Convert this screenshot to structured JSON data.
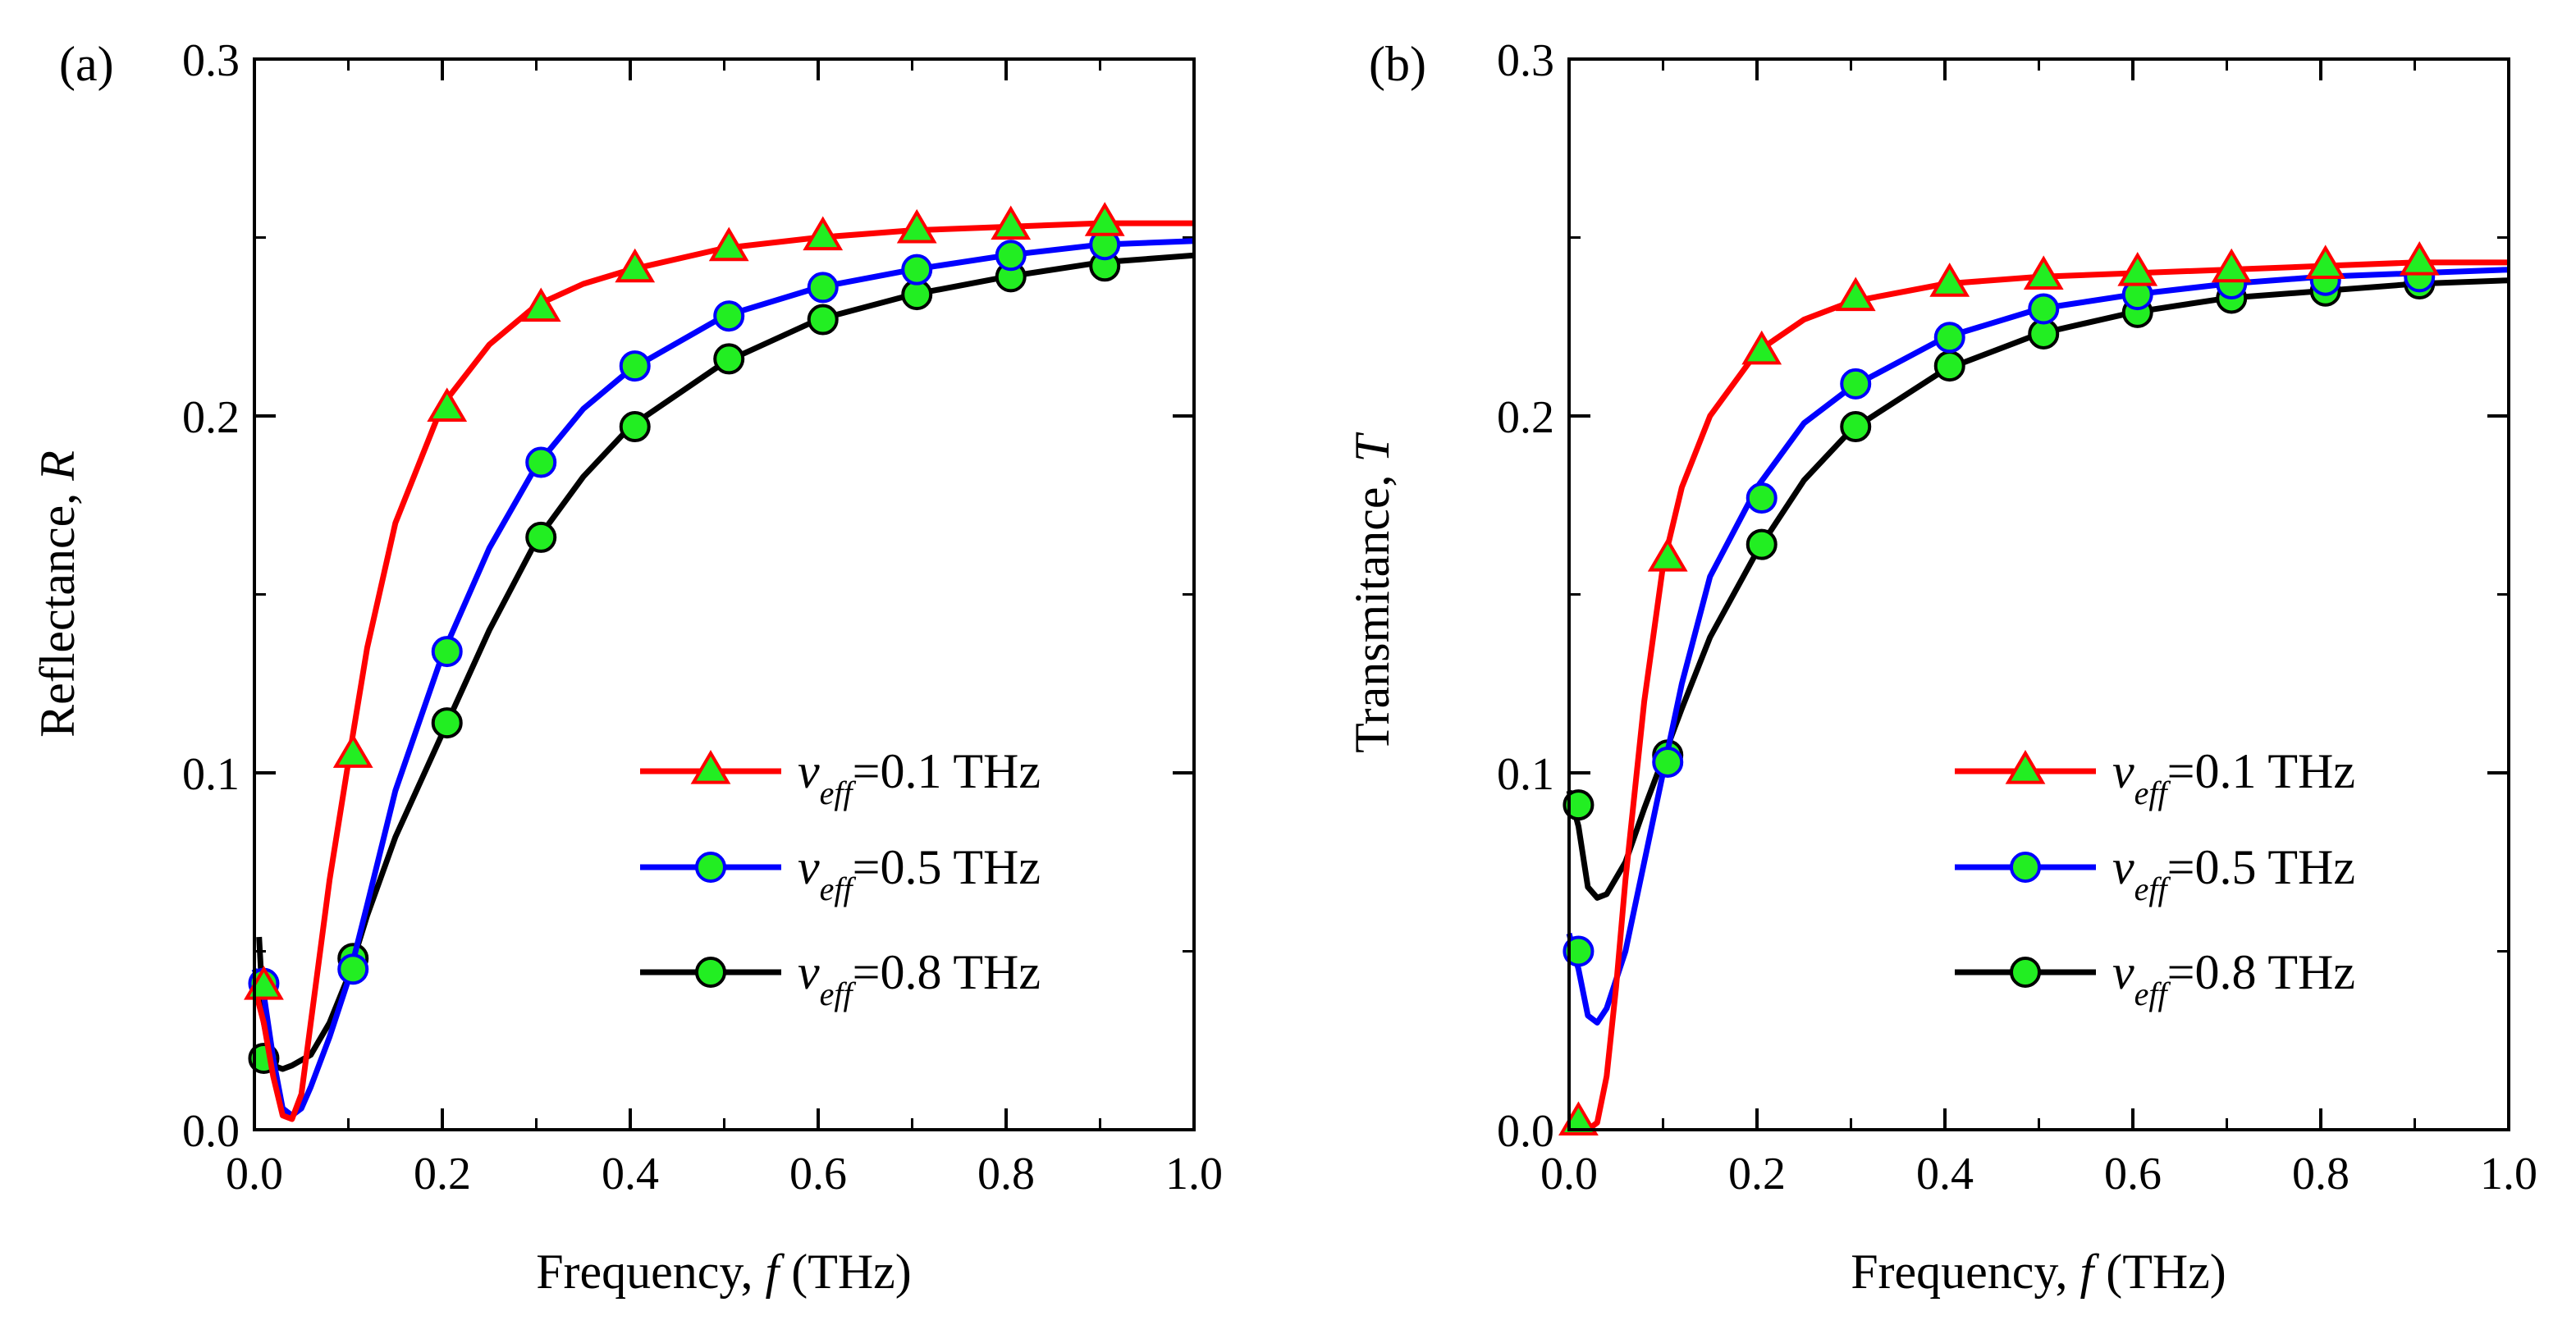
{
  "chart_data": [
    {
      "panel_label": "(a)",
      "type": "line",
      "xlabel": "Frequency, f (THz)",
      "xlabel_parts": {
        "prefix": "Frequency, ",
        "symbol": "f",
        "suffix": " (THz)"
      },
      "ylabel": "Reflectance, R",
      "ylabel_parts": {
        "prefix": "Reflectance, ",
        "symbol": "R"
      },
      "xlim": [
        0.0,
        1.0
      ],
      "ylim": [
        0.0,
        0.3
      ],
      "xticks": [
        "0.0",
        "0.2",
        "0.4",
        "0.6",
        "0.8",
        "1.0"
      ],
      "yticks": [
        "0.0",
        "0.1",
        "0.2",
        "0.3"
      ],
      "legend_position": "lower-right",
      "series": [
        {
          "name": "v_eff=0.1 THz",
          "legend": {
            "symbol": "v",
            "sub": "eff",
            "rest": "=0.1 THz"
          },
          "color": "#ff0000",
          "marker": "triangle",
          "line": [
            [
              0.0,
              0.04
            ],
            [
              0.01,
              0.03
            ],
            [
              0.02,
              0.015
            ],
            [
              0.03,
              0.004
            ],
            [
              0.04,
              0.003
            ],
            [
              0.05,
              0.01
            ],
            [
              0.06,
              0.03
            ],
            [
              0.08,
              0.07
            ],
            [
              0.1,
              0.103
            ],
            [
              0.12,
              0.135
            ],
            [
              0.15,
              0.17
            ],
            [
              0.2,
              0.203
            ],
            [
              0.25,
              0.22
            ],
            [
              0.3,
              0.231
            ],
            [
              0.35,
              0.237
            ],
            [
              0.4,
              0.241
            ],
            [
              0.5,
              0.247
            ],
            [
              0.6,
              0.25
            ],
            [
              0.7,
              0.252
            ],
            [
              0.8,
              0.253
            ],
            [
              0.9,
              0.254
            ],
            [
              1.0,
              0.254
            ]
          ],
          "markers": [
            [
              0.01,
              0.04
            ],
            [
              0.105,
              0.105
            ],
            [
              0.205,
              0.202
            ],
            [
              0.305,
              0.23
            ],
            [
              0.405,
              0.241
            ],
            [
              0.505,
              0.247
            ],
            [
              0.605,
              0.25
            ],
            [
              0.705,
              0.252
            ],
            [
              0.805,
              0.253
            ],
            [
              0.905,
              0.254
            ]
          ]
        },
        {
          "name": "v_eff=0.5 THz",
          "legend": {
            "symbol": "v",
            "sub": "eff",
            "rest": "=0.5 THz"
          },
          "color": "#0000ff",
          "marker": "circle",
          "line": [
            [
              0.0,
              0.045
            ],
            [
              0.01,
              0.038
            ],
            [
              0.02,
              0.02
            ],
            [
              0.03,
              0.006
            ],
            [
              0.04,
              0.004
            ],
            [
              0.05,
              0.006
            ],
            [
              0.06,
              0.012
            ],
            [
              0.08,
              0.026
            ],
            [
              0.1,
              0.042
            ],
            [
              0.12,
              0.063
            ],
            [
              0.15,
              0.095
            ],
            [
              0.2,
              0.133
            ],
            [
              0.25,
              0.163
            ],
            [
              0.3,
              0.186
            ],
            [
              0.35,
              0.202
            ],
            [
              0.4,
              0.213
            ],
            [
              0.5,
              0.228
            ],
            [
              0.6,
              0.236
            ],
            [
              0.7,
              0.241
            ],
            [
              0.8,
              0.245
            ],
            [
              0.9,
              0.248
            ],
            [
              1.0,
              0.249
            ]
          ],
          "markers": [
            [
              0.01,
              0.041
            ],
            [
              0.105,
              0.045
            ],
            [
              0.205,
              0.134
            ],
            [
              0.305,
              0.187
            ],
            [
              0.405,
              0.214
            ],
            [
              0.505,
              0.228
            ],
            [
              0.605,
              0.236
            ],
            [
              0.705,
              0.241
            ],
            [
              0.805,
              0.245
            ],
            [
              0.905,
              0.248
            ]
          ]
        },
        {
          "name": "v_eff=0.8 THz",
          "legend": {
            "symbol": "v",
            "sub": "eff",
            "rest": "=0.8 THz"
          },
          "color": "#000000",
          "marker": "circle",
          "line": [
            [
              0.005,
              0.054
            ],
            [
              0.01,
              0.03
            ],
            [
              0.02,
              0.018
            ],
            [
              0.03,
              0.017
            ],
            [
              0.04,
              0.018
            ],
            [
              0.06,
              0.021
            ],
            [
              0.08,
              0.03
            ],
            [
              0.1,
              0.043
            ],
            [
              0.12,
              0.06
            ],
            [
              0.15,
              0.082
            ],
            [
              0.2,
              0.111
            ],
            [
              0.25,
              0.14
            ],
            [
              0.3,
              0.165
            ],
            [
              0.35,
              0.183
            ],
            [
              0.4,
              0.197
            ],
            [
              0.5,
              0.215
            ],
            [
              0.6,
              0.227
            ],
            [
              0.7,
              0.234
            ],
            [
              0.8,
              0.239
            ],
            [
              0.9,
              0.243
            ],
            [
              1.0,
              0.245
            ]
          ],
          "markers": [
            [
              0.01,
              0.02
            ],
            [
              0.105,
              0.048
            ],
            [
              0.205,
              0.114
            ],
            [
              0.305,
              0.166
            ],
            [
              0.405,
              0.197
            ],
            [
              0.505,
              0.216
            ],
            [
              0.605,
              0.227
            ],
            [
              0.705,
              0.234
            ],
            [
              0.805,
              0.239
            ],
            [
              0.905,
              0.242
            ]
          ]
        }
      ]
    },
    {
      "panel_label": "(b)",
      "type": "line",
      "xlabel": "Frequency, f (THz)",
      "xlabel_parts": {
        "prefix": "Frequency, ",
        "symbol": "f",
        "suffix": " (THz)"
      },
      "ylabel": "Transmitance, T",
      "ylabel_parts": {
        "prefix": "Transmitance, ",
        "symbol": "T"
      },
      "xlim": [
        0.0,
        1.0
      ],
      "ylim": [
        0.0,
        0.3
      ],
      "xticks": [
        "0.0",
        "0.2",
        "0.4",
        "0.6",
        "0.8",
        "1.0"
      ],
      "yticks": [
        "0.0",
        "0.1",
        "0.2",
        "0.3"
      ],
      "legend_position": "lower-right",
      "series": [
        {
          "name": "v_eff=0.1 THz",
          "legend": {
            "symbol": "v",
            "sub": "eff",
            "rest": "=0.1 THz"
          },
          "color": "#ff0000",
          "marker": "triangle",
          "line": [
            [
              0.0,
              0.003
            ],
            [
              0.01,
              0.001
            ],
            [
              0.02,
              0.0
            ],
            [
              0.03,
              0.002
            ],
            [
              0.04,
              0.015
            ],
            [
              0.05,
              0.04
            ],
            [
              0.06,
              0.07
            ],
            [
              0.08,
              0.12
            ],
            [
              0.1,
              0.158
            ],
            [
              0.12,
              0.18
            ],
            [
              0.15,
              0.2
            ],
            [
              0.2,
              0.218
            ],
            [
              0.25,
              0.227
            ],
            [
              0.3,
              0.232
            ],
            [
              0.4,
              0.237
            ],
            [
              0.5,
              0.239
            ],
            [
              0.6,
              0.24
            ],
            [
              0.7,
              0.241
            ],
            [
              0.8,
              0.242
            ],
            [
              0.9,
              0.243
            ],
            [
              1.0,
              0.243
            ]
          ],
          "markers": [
            [
              0.01,
              0.002
            ],
            [
              0.105,
              0.16
            ],
            [
              0.205,
              0.218
            ],
            [
              0.305,
              0.233
            ],
            [
              0.405,
              0.237
            ],
            [
              0.505,
              0.239
            ],
            [
              0.605,
              0.24
            ],
            [
              0.705,
              0.241
            ],
            [
              0.805,
              0.242
            ],
            [
              0.905,
              0.243
            ]
          ]
        },
        {
          "name": "v_eff=0.5 THz",
          "legend": {
            "symbol": "v",
            "sub": "eff",
            "rest": "=0.5 THz"
          },
          "color": "#0000ff",
          "marker": "circle",
          "line": [
            [
              0.0,
              0.055
            ],
            [
              0.01,
              0.045
            ],
            [
              0.02,
              0.032
            ],
            [
              0.03,
              0.03
            ],
            [
              0.04,
              0.034
            ],
            [
              0.06,
              0.05
            ],
            [
              0.08,
              0.075
            ],
            [
              0.1,
              0.1
            ],
            [
              0.12,
              0.125
            ],
            [
              0.15,
              0.155
            ],
            [
              0.2,
              0.18
            ],
            [
              0.25,
              0.198
            ],
            [
              0.3,
              0.208
            ],
            [
              0.4,
              0.222
            ],
            [
              0.5,
              0.23
            ],
            [
              0.6,
              0.234
            ],
            [
              0.7,
              0.237
            ],
            [
              0.8,
              0.239
            ],
            [
              0.9,
              0.24
            ],
            [
              1.0,
              0.241
            ]
          ],
          "markers": [
            [
              0.01,
              0.05
            ],
            [
              0.105,
              0.103
            ],
            [
              0.205,
              0.177
            ],
            [
              0.305,
              0.209
            ],
            [
              0.405,
              0.222
            ],
            [
              0.505,
              0.23
            ],
            [
              0.605,
              0.234
            ],
            [
              0.705,
              0.237
            ],
            [
              0.805,
              0.238
            ],
            [
              0.905,
              0.239
            ]
          ]
        },
        {
          "name": "v_eff=0.8 THz",
          "legend": {
            "symbol": "v",
            "sub": "eff",
            "rest": "=0.8 THz"
          },
          "color": "#000000",
          "marker": "circle",
          "line": [
            [
              0.0,
              0.095
            ],
            [
              0.01,
              0.085
            ],
            [
              0.02,
              0.068
            ],
            [
              0.03,
              0.065
            ],
            [
              0.04,
              0.066
            ],
            [
              0.06,
              0.075
            ],
            [
              0.08,
              0.09
            ],
            [
              0.1,
              0.104
            ],
            [
              0.12,
              0.118
            ],
            [
              0.15,
              0.138
            ],
            [
              0.2,
              0.162
            ],
            [
              0.25,
              0.182
            ],
            [
              0.3,
              0.196
            ],
            [
              0.4,
              0.213
            ],
            [
              0.5,
              0.223
            ],
            [
              0.6,
              0.229
            ],
            [
              0.7,
              0.233
            ],
            [
              0.8,
              0.235
            ],
            [
              0.9,
              0.237
            ],
            [
              1.0,
              0.238
            ]
          ],
          "markers": [
            [
              0.01,
              0.091
            ],
            [
              0.105,
              0.105
            ],
            [
              0.205,
              0.164
            ],
            [
              0.305,
              0.197
            ],
            [
              0.405,
              0.214
            ],
            [
              0.505,
              0.223
            ],
            [
              0.605,
              0.229
            ],
            [
              0.705,
              0.233
            ],
            [
              0.805,
              0.235
            ],
            [
              0.905,
              0.237
            ]
          ]
        }
      ]
    }
  ],
  "style": {
    "marker_fill": "#22ee22",
    "axis_color": "#000000"
  }
}
